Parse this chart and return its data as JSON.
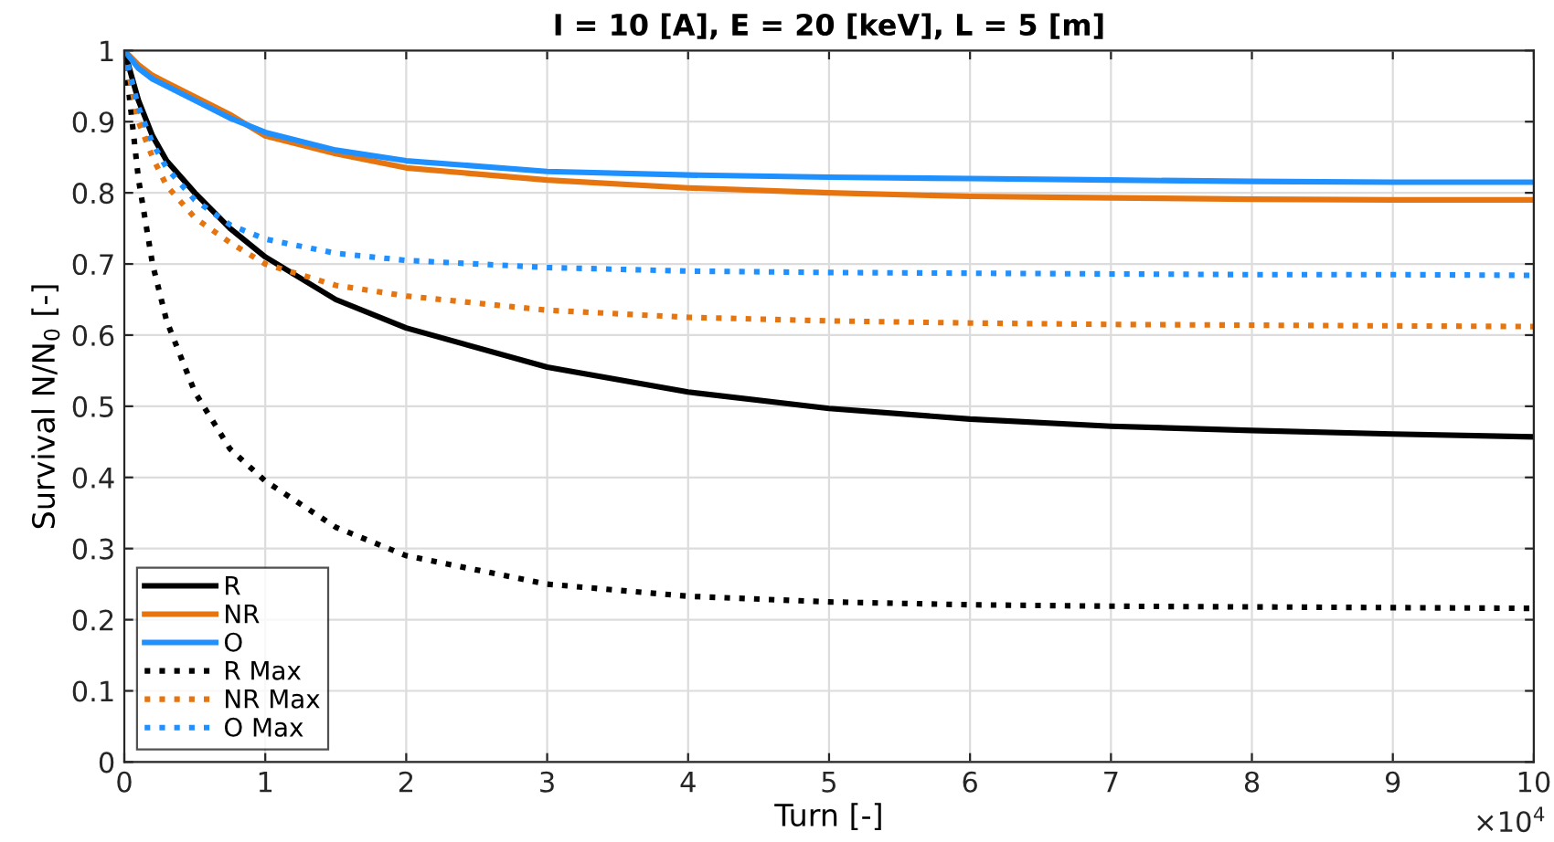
{
  "chart_data": {
    "type": "line",
    "title": "I = 10 [A], E = 20 [keV], L = 5 [m]",
    "xlabel": "Turn [-]",
    "ylabel": "Survival N/N$_{0}$ [-]",
    "x": [
      0,
      0.1,
      0.2,
      0.3,
      0.5,
      0.75,
      1,
      1.5,
      2,
      3,
      4,
      5,
      6,
      7,
      8,
      9,
      10
    ],
    "series": [
      {
        "name": "R",
        "color": "#000000",
        "line_style": "solid",
        "values": [
          1.0,
          0.93,
          0.88,
          0.845,
          0.8,
          0.75,
          0.71,
          0.65,
          0.61,
          0.555,
          0.52,
          0.497,
          0.482,
          0.472,
          0.466,
          0.461,
          0.457
        ]
      },
      {
        "name": "NR",
        "color": "#e6750f",
        "line_style": "solid",
        "values": [
          1.0,
          0.98,
          0.965,
          0.955,
          0.935,
          0.91,
          0.88,
          0.855,
          0.835,
          0.818,
          0.807,
          0.8,
          0.795,
          0.793,
          0.791,
          0.79,
          0.79
        ]
      },
      {
        "name": "O",
        "color": "#1e90ff",
        "line_style": "solid",
        "values": [
          1.0,
          0.975,
          0.96,
          0.95,
          0.93,
          0.905,
          0.885,
          0.86,
          0.845,
          0.83,
          0.825,
          0.822,
          0.82,
          0.818,
          0.816,
          0.815,
          0.815
        ]
      },
      {
        "name": "R Max",
        "color": "#000000",
        "line_style": "dotted",
        "values": [
          1.0,
          0.82,
          0.7,
          0.62,
          0.52,
          0.44,
          0.395,
          0.33,
          0.29,
          0.25,
          0.233,
          0.225,
          0.221,
          0.219,
          0.218,
          0.217,
          0.216
        ]
      },
      {
        "name": "NR Max",
        "color": "#e6750f",
        "line_style": "dotted",
        "values": [
          1.0,
          0.9,
          0.85,
          0.81,
          0.765,
          0.73,
          0.7,
          0.67,
          0.655,
          0.635,
          0.625,
          0.62,
          0.617,
          0.615,
          0.614,
          0.613,
          0.612
        ]
      },
      {
        "name": "O Max",
        "color": "#1e90ff",
        "line_style": "dotted",
        "values": [
          1.0,
          0.92,
          0.87,
          0.835,
          0.79,
          0.755,
          0.735,
          0.715,
          0.705,
          0.695,
          0.69,
          0.688,
          0.687,
          0.686,
          0.685,
          0.685,
          0.684
        ]
      }
    ],
    "xlim": [
      0,
      10
    ],
    "xticks": [
      0,
      1,
      2,
      3,
      4,
      5,
      6,
      7,
      8,
      9,
      10
    ],
    "ylim": [
      0,
      1
    ],
    "yticks": [
      0,
      0.1,
      0.2,
      0.3,
      0.4,
      0.5,
      0.6,
      0.7,
      0.8,
      0.9,
      1
    ],
    "grid": true,
    "legend": "bottom left",
    "annotations": [
      "×10$^{4}$"
    ]
  }
}
